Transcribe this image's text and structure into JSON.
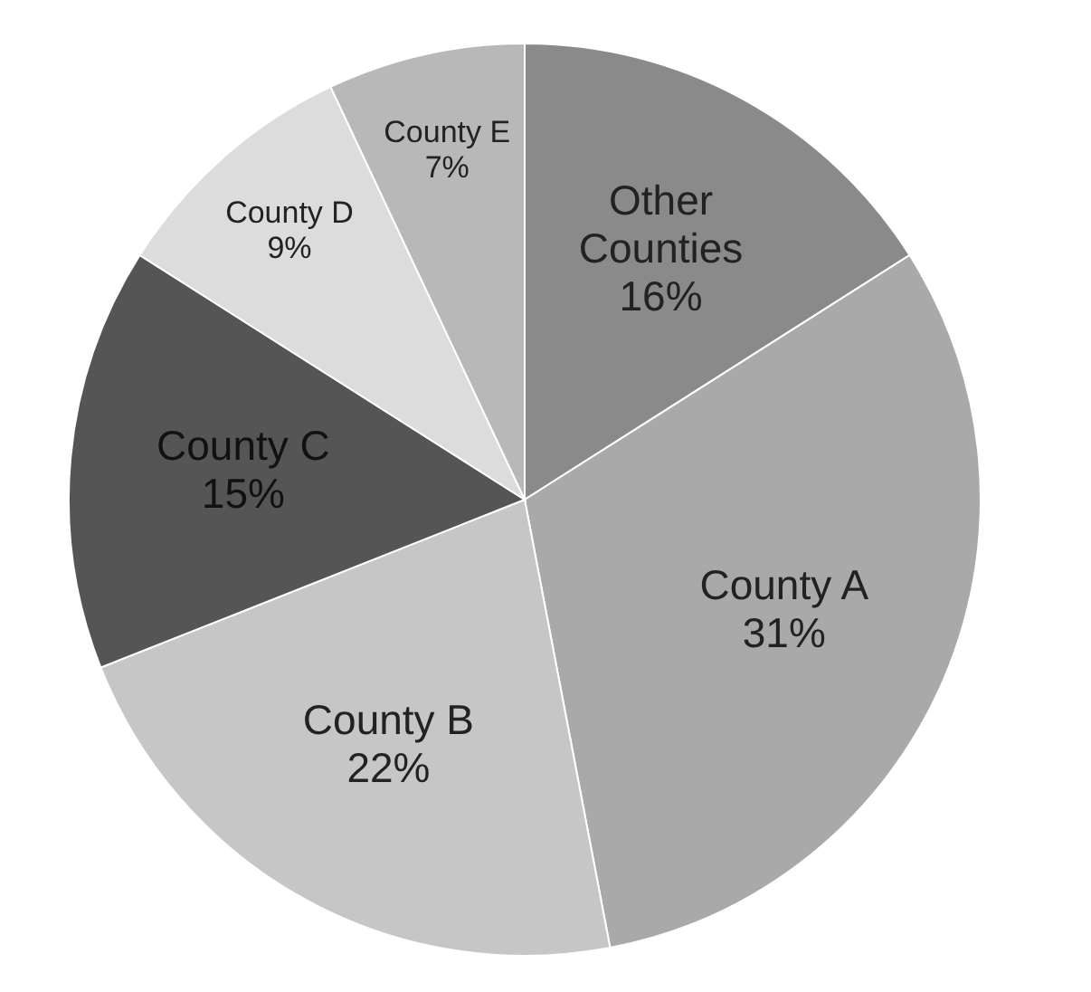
{
  "chart_data": {
    "type": "pie",
    "categories": [
      "Other Counties",
      "County A",
      "County B",
      "County C",
      "County D",
      "County E"
    ],
    "values": [
      16,
      31,
      22,
      15,
      9,
      7
    ],
    "value_labels": [
      "16%",
      "31%",
      "22%",
      "15%",
      "9%",
      "7%"
    ],
    "colors": [
      "#8a8a8a",
      "#a9a9a9",
      "#c6c6c6",
      "#555555",
      "#dcdcdc",
      "#b8b8b8"
    ]
  }
}
